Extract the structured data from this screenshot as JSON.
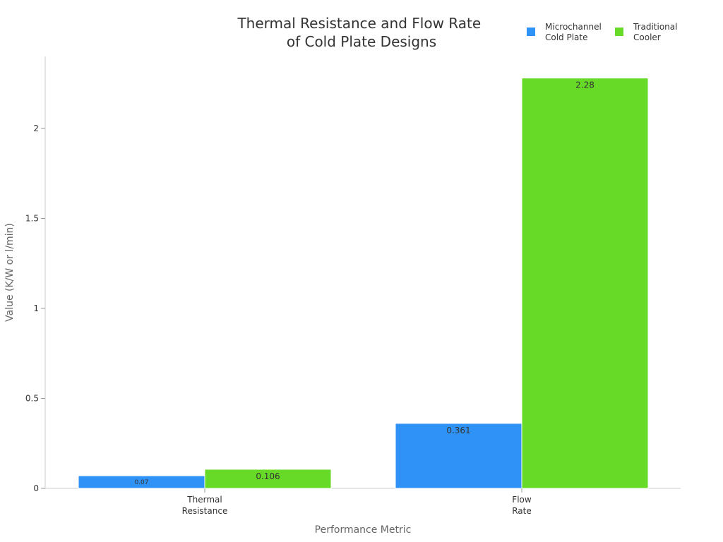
{
  "chart_data": {
    "type": "bar",
    "title_lines": [
      "Thermal Resistance and Flow Rate",
      "of Cold Plate Designs"
    ],
    "xlabel": "Performance Metric",
    "ylabel": "Value (K/W or l/min)",
    "categories": [
      [
        "Thermal",
        "Resistance"
      ],
      [
        "Flow",
        "Rate"
      ]
    ],
    "series": [
      {
        "name_lines": [
          "Microchannel",
          "Cold Plate"
        ],
        "color": "#2f92f7",
        "values": [
          0.07,
          0.361
        ],
        "value_labels": [
          "0.07",
          "0.361"
        ]
      },
      {
        "name_lines": [
          "Traditional",
          "Cooler"
        ],
        "color": "#66da26",
        "values": [
          0.106,
          2.28
        ],
        "value_labels": [
          "0.106",
          "2.28"
        ]
      }
    ],
    "ylim": [
      0,
      2.4
    ],
    "yticks": [
      0,
      0.5,
      1,
      1.5,
      2
    ],
    "ytick_labels": [
      "0",
      "0.5",
      "1",
      "1.5",
      "2"
    ],
    "grid": false,
    "legend_position": "top-right"
  }
}
